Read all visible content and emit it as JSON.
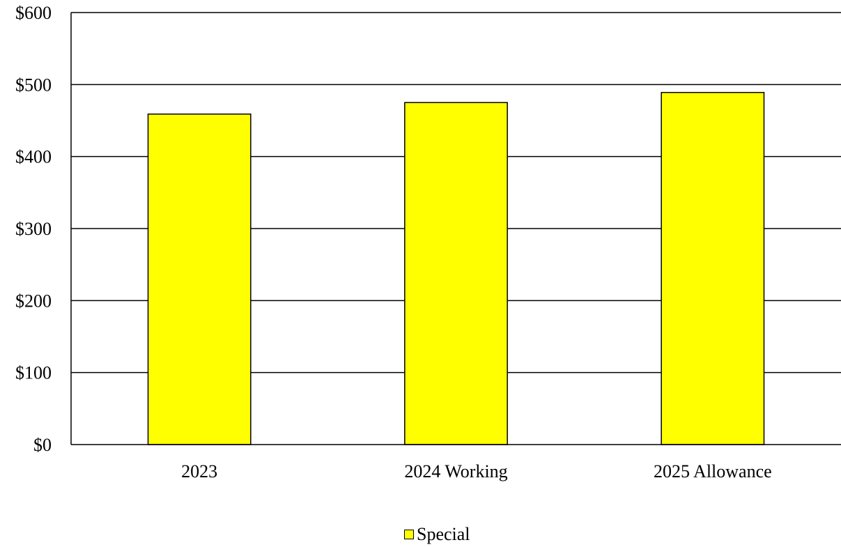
{
  "chart_data": {
    "type": "bar",
    "categories": [
      "2023",
      "2024 Working",
      "2025 Allowance"
    ],
    "series": [
      {
        "name": "Special",
        "values": [
          459,
          475,
          489
        ],
        "color": "#FFFF00"
      }
    ],
    "ylim": [
      0,
      600
    ],
    "yticks": [
      0,
      100,
      200,
      300,
      400,
      500,
      600
    ],
    "ytick_labels": [
      "$0",
      "$100",
      "$200",
      "$300",
      "$400",
      "$500",
      "$600"
    ],
    "grid": true,
    "legend_position": "bottom-center"
  }
}
